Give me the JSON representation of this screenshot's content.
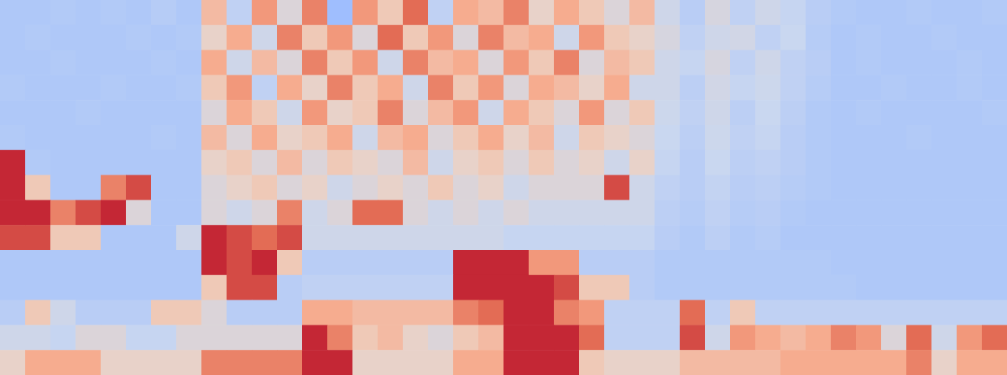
{
  "chart_data": {
    "type": "heatmap",
    "tick_labels": false,
    "color_range": [
      0,
      10
    ],
    "cells": [
      [
        3.5,
        3.5,
        3.6,
        3.5,
        3.6,
        3.5,
        3.7,
        3.5,
        6.5,
        4,
        7.5,
        5,
        8,
        3,
        7.5,
        6,
        8.5,
        4,
        7,
        6.5,
        8,
        5.5,
        7,
        6,
        5,
        6.5,
        4.5,
        3.8,
        4.8,
        4,
        4.5,
        4.2,
        3.8,
        3.6,
        3.5,
        3.5,
        3.6,
        3.5,
        3.5,
        3.6
      ],
      [
        3.5,
        3.6,
        3.5,
        3.5,
        3.5,
        3.6,
        3.5,
        3.6,
        5.5,
        7,
        4.5,
        8,
        6,
        7.5,
        5,
        8.5,
        6,
        7.5,
        5,
        8,
        6.5,
        7,
        4.5,
        7.5,
        6,
        5.5,
        4.8,
        4,
        4.5,
        4.6,
        4,
        4.3,
        3.7,
        3.5,
        3.6,
        3.5,
        3.5,
        3.6,
        3.5,
        3.5
      ],
      [
        3.5,
        3.5,
        3.6,
        3.5,
        3.5,
        3.5,
        3.6,
        3.5,
        7,
        4.5,
        6.5,
        5,
        8,
        6,
        7.5,
        4.5,
        8,
        6.5,
        7,
        5,
        7.5,
        6,
        8,
        5,
        6.5,
        6,
        4.5,
        4.2,
        4.8,
        4,
        4.5,
        4,
        3.8,
        3.5,
        3.6,
        3.5,
        3.5,
        3.5,
        3.6,
        3.5
      ],
      [
        3.6,
        3.5,
        3.5,
        3.5,
        3.6,
        3.5,
        3.5,
        3.6,
        6,
        7.5,
        4,
        7,
        5.5,
        8,
        6,
        7,
        4.5,
        8,
        6,
        7.5,
        5,
        7,
        6.5,
        5.5,
        7,
        4.5,
        4.5,
        3.9,
        4.6,
        4.2,
        4.4,
        4,
        3.7,
        3.5,
        3.5,
        3.6,
        3.5,
        3.5,
        3.6,
        3.5
      ],
      [
        3.5,
        3.5,
        3.5,
        3.6,
        3.5,
        3.5,
        3.5,
        3.5,
        5,
        7,
        6,
        4.5,
        7.5,
        5.5,
        6,
        8,
        5,
        6.5,
        7.5,
        4.5,
        7,
        6,
        5,
        7.5,
        5,
        6,
        4.4,
        4,
        4.5,
        3.9,
        4.3,
        3.9,
        3.6,
        3.5,
        3.6,
        3.5,
        3.5,
        3.5,
        3.5,
        3.6
      ],
      [
        3.6,
        3.5,
        3.5,
        3.5,
        3.5,
        3.5,
        3.6,
        3.5,
        6.5,
        5,
        7,
        5.5,
        6,
        7,
        4.5,
        6.5,
        7,
        5,
        6,
        7,
        5.5,
        6.5,
        4.5,
        6,
        5.5,
        5,
        4.3,
        3.9,
        4.4,
        4,
        4.2,
        3.8,
        3.6,
        3.5,
        3.5,
        3.5,
        3.6,
        3.5,
        3.5,
        3.5
      ],
      [
        9.5,
        3.6,
        3.5,
        3.5,
        3.5,
        3.5,
        3.5,
        3.5,
        5.5,
        6,
        5,
        6.5,
        5,
        6,
        5.5,
        5,
        6.5,
        4.5,
        5.5,
        6,
        5,
        6,
        5,
        5.5,
        4.5,
        5.5,
        4.2,
        3.8,
        4.3,
        3.9,
        4,
        3.8,
        3.6,
        3.5,
        3.5,
        3.5,
        3.5,
        3.5,
        3.5,
        3.5
      ],
      [
        9.5,
        6,
        3.5,
        3.5,
        8,
        9,
        3.5,
        3.5,
        5,
        5.5,
        6,
        5,
        5.5,
        4.5,
        5,
        5.5,
        5,
        6,
        5,
        5.5,
        4.5,
        5,
        5,
        5,
        9,
        4.5,
        4,
        3.8,
        4.1,
        3.8,
        3.9,
        3.7,
        3.6,
        3.5,
        3.5,
        3.5,
        3.5,
        3.5,
        3.5,
        3.5
      ],
      [
        9.5,
        9.5,
        8,
        9,
        9.5,
        5,
        3.5,
        3.5,
        5,
        4.5,
        5,
        8,
        4.5,
        5,
        8.5,
        8.5,
        5,
        4.5,
        5,
        4.5,
        5,
        4.5,
        4.5,
        4.5,
        4.5,
        4.5,
        3.9,
        3.7,
        4,
        3.7,
        3.8,
        3.6,
        3.5,
        3.5,
        3.5,
        3.5,
        3.5,
        3.5,
        3.5,
        3.5
      ],
      [
        9,
        9,
        6,
        6,
        3.5,
        3.5,
        3.5,
        4.5,
        9.5,
        9,
        8.5,
        9,
        4.5,
        4.5,
        4.5,
        4.5,
        4.5,
        4.5,
        4.5,
        4.5,
        4.2,
        4.2,
        4.2,
        4.2,
        4.2,
        4.2,
        3.8,
        3.6,
        3.9,
        3.6,
        3.7,
        3.5,
        3.5,
        3.5,
        3.5,
        3.5,
        3.5,
        3.5,
        3.5,
        3.5
      ],
      [
        3.5,
        3.5,
        3.5,
        3.5,
        3.5,
        3.5,
        3.5,
        3.5,
        9.5,
        9,
        9.5,
        6,
        3.8,
        3.8,
        3.8,
        3.8,
        3.8,
        3.8,
        9.5,
        9.5,
        9.5,
        7.5,
        7.5,
        3.8,
        3.8,
        3.8,
        3.6,
        3.6,
        3.6,
        3.6,
        3.6,
        3.6,
        3.6,
        3.5,
        3.5,
        3.5,
        3.5,
        3.5,
        3.5,
        3.5
      ],
      [
        3.5,
        3.5,
        3.5,
        3.5,
        3.5,
        3.5,
        3.5,
        3.5,
        6,
        9,
        9,
        3.8,
        4,
        4,
        4,
        4,
        4,
        4,
        9.5,
        9.5,
        9.5,
        9.5,
        9,
        6,
        6,
        3.8,
        3.6,
        3.6,
        3.6,
        3.6,
        3.6,
        3.6,
        3.6,
        3.6,
        3.5,
        3.5,
        3.5,
        3.5,
        3.5,
        3.5
      ],
      [
        3.8,
        6,
        4.5,
        3.8,
        3.8,
        3.8,
        6,
        6,
        5,
        3.8,
        3.8,
        3.8,
        7,
        7,
        6.5,
        6.5,
        6.5,
        6.5,
        8,
        8.5,
        9.5,
        9.5,
        8,
        7.5,
        4,
        4,
        4,
        8.5,
        4,
        6,
        4,
        4,
        4,
        4,
        4,
        4,
        4,
        4,
        4,
        4
      ],
      [
        4.5,
        4.5,
        4.2,
        5,
        5,
        4.2,
        4.2,
        5,
        5,
        5,
        5,
        5,
        9.5,
        8,
        6,
        6.5,
        5.5,
        5,
        6,
        6.5,
        9.5,
        9.5,
        9.5,
        8.5,
        4,
        4,
        4,
        9,
        4.5,
        7.5,
        7,
        6.5,
        7,
        8,
        7.5,
        5,
        8.5,
        4.5,
        7.5,
        8.5
      ],
      [
        5.5,
        7,
        7,
        7,
        5.5,
        5.5,
        5.5,
        5.5,
        8,
        8,
        8,
        8,
        9.5,
        9.5,
        5.5,
        5.5,
        5.5,
        5.5,
        7,
        7,
        9.5,
        9.5,
        9.5,
        6,
        5.5,
        5.5,
        5.5,
        6.5,
        6.5,
        6.5,
        6.5,
        7,
        7,
        7,
        7,
        7,
        8,
        5.5,
        7,
        7
      ]
    ]
  }
}
